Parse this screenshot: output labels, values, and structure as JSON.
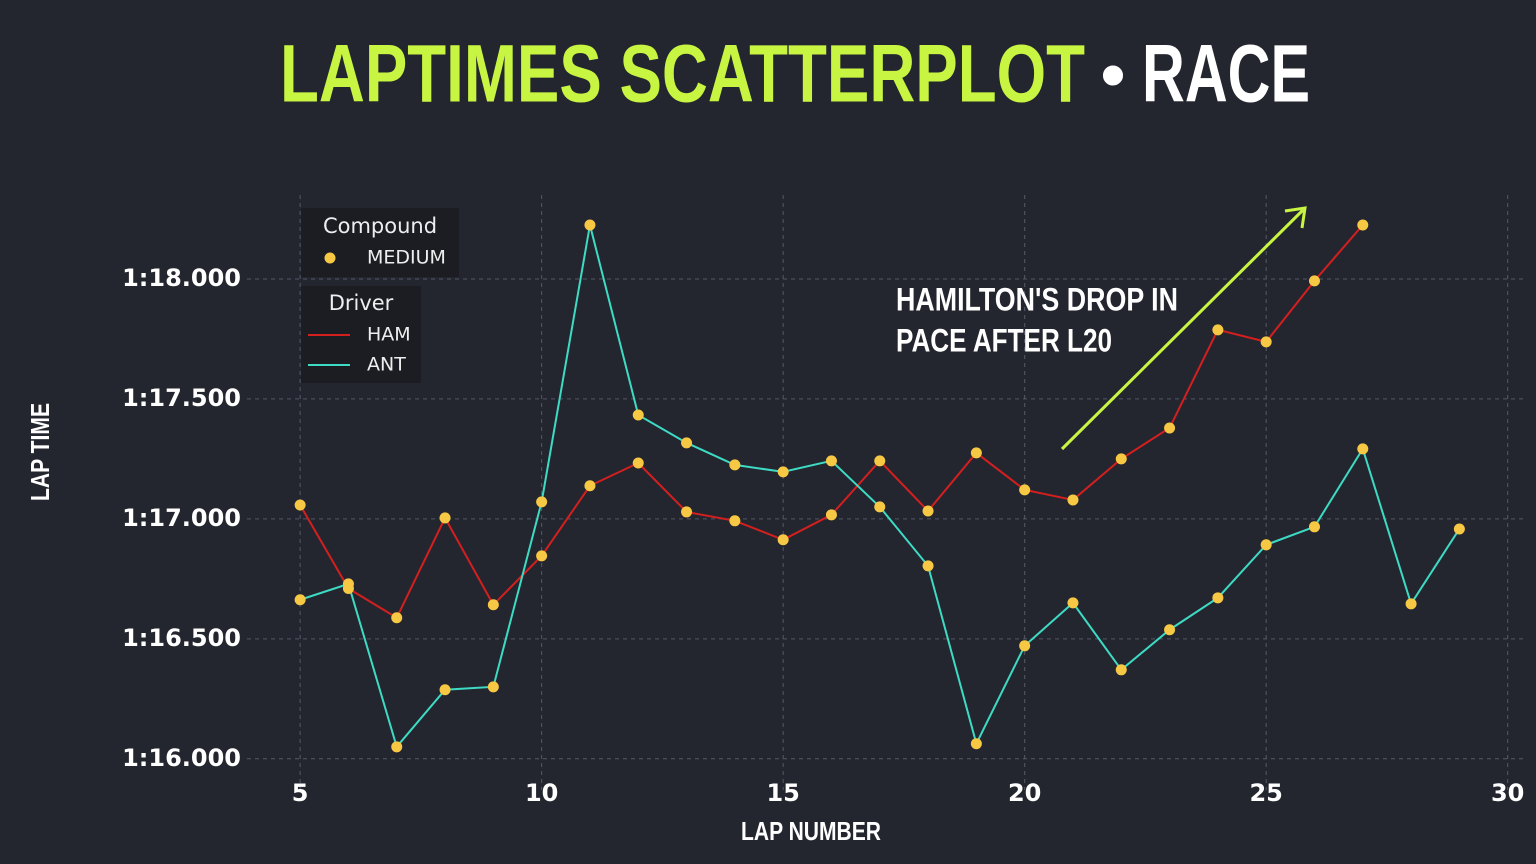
{
  "chart_data": {
    "type": "line",
    "title": "LAPTIMES SCATTERPLOT",
    "title_separator": "•",
    "subtitle": "RACE",
    "x_label": "LAP NUMBER",
    "y_label": "LAP TIME",
    "x": [
      5,
      6,
      7,
      8,
      9,
      10,
      11,
      12,
      13,
      14,
      15,
      16,
      17,
      18,
      19,
      20,
      21,
      22,
      23,
      24,
      25,
      26,
      27,
      28,
      29
    ],
    "series": [
      {
        "name": "HAM",
        "color": "#d41f1f",
        "values": [
          77.058,
          76.71,
          76.588,
          77.004,
          76.642,
          76.846,
          77.138,
          77.233,
          77.029,
          76.992,
          76.913,
          77.017,
          77.242,
          77.033,
          77.275,
          77.121,
          77.079,
          77.25,
          77.379,
          77.788,
          77.738,
          77.992,
          78.225,
          null,
          null
        ]
      },
      {
        "name": "ANT",
        "color": "#3ddbc4",
        "values": [
          76.663,
          76.729,
          76.05,
          76.288,
          76.3,
          77.071,
          78.225,
          77.433,
          77.317,
          77.225,
          77.196,
          77.242,
          77.05,
          76.804,
          76.063,
          76.471,
          76.65,
          76.371,
          76.538,
          76.671,
          76.892,
          76.967,
          77.292,
          76.646,
          76.958
        ]
      }
    ],
    "marker_legend": {
      "title": "Compound",
      "name": "MEDIUM",
      "color": "#f7c844"
    },
    "legend_title": "Driver",
    "annotation": [
      "HAMILTON'S DROP IN",
      "PACE AFTER L20"
    ],
    "xlim": [
      3.9,
      30.4
    ],
    "ylim": [
      75.87,
      78.35
    ],
    "xticks": [
      5,
      10,
      15,
      20,
      25,
      30
    ],
    "yticks": [
      {
        "value": 76,
        "label": "1:16.000"
      },
      {
        "value": 76.5,
        "label": "1:16.500"
      },
      {
        "value": 77,
        "label": "1:17.000"
      },
      {
        "value": 77.5,
        "label": "1:17.500"
      },
      {
        "value": 78,
        "label": "1:18.000"
      }
    ],
    "grid": true
  }
}
